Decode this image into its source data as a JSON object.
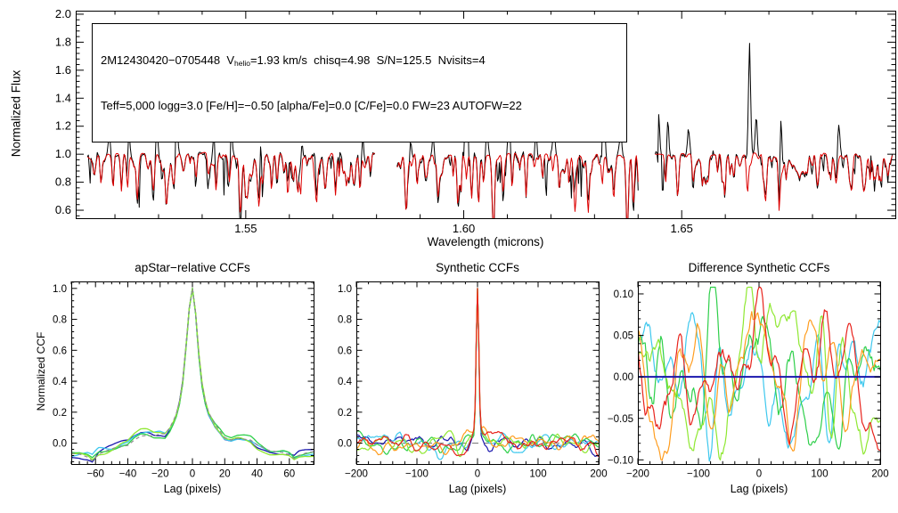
{
  "figure": {
    "annotation": {
      "line1_prefix": "2M12430420−0705448  V",
      "line1_sub": "helio",
      "line1_suffix": "=1.93 km/s  chisq=4.98  S/N=125.5  Nvisits=4",
      "line2": "Teff=5,000 logg=3.0 [Fe/H]=−0.50 [alpha/Fe]=0.0 [C/Fe]=0.0 FW=23 AUTOFW=22"
    },
    "colors": {
      "observed": "#000000",
      "best_fit": "#dd0000",
      "navy": "#1a17ad",
      "cyan": "#3ec8ee",
      "green": "#2ecf4a",
      "chartreuse": "#8fe832",
      "orange": "#ff9d1f",
      "red": "#e8231c",
      "dashed_gray": "#808080"
    }
  },
  "chart_data": [
    {
      "type": "line",
      "title": "",
      "xlabel": "Wavelength (microns)",
      "ylabel": "Normalized Flux",
      "xlim": [
        1.511,
        1.699
      ],
      "ylim": [
        0.543,
        2.025
      ],
      "xticks": {
        "major": [
          1.55,
          1.6,
          1.65
        ],
        "labels": [
          "1.55",
          "1.60",
          "1.65"
        ],
        "minor_step": 0.01
      },
      "yticks": {
        "major": [
          0.6,
          0.8,
          1.0,
          1.2,
          1.4,
          1.6,
          1.8,
          2.0
        ],
        "labels": [
          "0.6",
          "0.8",
          "1.0",
          "1.2",
          "1.4",
          "1.6",
          "1.8",
          "2.0"
        ],
        "minor_step": 0.04
      },
      "series": [
        {
          "name": "observed combined spectrum",
          "color": "#000000"
        },
        {
          "name": "best-fit synthetic spectrum",
          "color": "#dd0000"
        }
      ],
      "continuum": 1.0,
      "segments": [
        [
          1.5137,
          1.5796
        ],
        [
          1.5847,
          1.64
        ],
        [
          1.6439,
          1.6983
        ]
      ],
      "noise": {
        "observed_sigma": 0.017,
        "fit_sigma": 0.006
      },
      "emission_spikes": [
        [
          1.5187,
          1.14
        ],
        [
          1.5231,
          1.27
        ],
        [
          1.5296,
          1.19
        ],
        [
          1.5341,
          1.32
        ],
        [
          1.5427,
          1.23
        ],
        [
          1.5466,
          1.3
        ],
        [
          1.5534,
          1.21
        ],
        [
          1.5597,
          1.18
        ],
        [
          1.5627,
          1.2
        ],
        [
          1.5658,
          1.19
        ],
        [
          1.5717,
          1.13
        ],
        [
          1.5769,
          1.15
        ],
        [
          1.5879,
          1.16
        ],
        [
          1.593,
          1.14
        ],
        [
          1.6006,
          1.66
        ],
        [
          1.6053,
          1.18
        ],
        [
          1.6104,
          1.3
        ],
        [
          1.6165,
          1.21
        ],
        [
          1.6206,
          1.33
        ],
        [
          1.6255,
          1.16
        ],
        [
          1.632,
          1.54
        ],
        [
          1.636,
          1.18
        ],
        [
          1.6447,
          1.3
        ],
        [
          1.6468,
          1.26
        ],
        [
          1.6515,
          1.2
        ],
        [
          1.6655,
          1.92
        ],
        [
          1.6671,
          1.28
        ],
        [
          1.6727,
          1.48
        ],
        [
          1.686,
          1.26
        ],
        [
          1.6935,
          1.14
        ]
      ],
      "absorption_lines": [
        [
          1.5168,
          0.82,
          0.00022
        ],
        [
          1.5196,
          0.86,
          0.0002
        ],
        [
          1.5215,
          0.79,
          0.0002
        ],
        [
          1.5251,
          0.73,
          0.00024
        ],
        [
          1.5288,
          0.71,
          0.00028
        ],
        [
          1.5318,
          0.84,
          0.0002
        ],
        [
          1.5336,
          0.78,
          0.0002
        ],
        [
          1.5386,
          0.82,
          0.0002
        ],
        [
          1.5414,
          0.86,
          0.0002
        ],
        [
          1.5432,
          0.77,
          0.00024
        ],
        [
          1.5462,
          0.84,
          0.0002
        ],
        [
          1.5488,
          0.63,
          0.00028
        ],
        [
          1.5531,
          0.8,
          0.0002
        ],
        [
          1.5559,
          0.85,
          0.0002
        ],
        [
          1.5572,
          0.76,
          0.00022
        ],
        [
          1.5596,
          0.73,
          0.0002
        ],
        [
          1.5626,
          0.8,
          0.0002
        ],
        [
          1.5663,
          0.79,
          0.0002
        ],
        [
          1.5706,
          0.74,
          0.00024
        ],
        [
          1.5731,
          0.82,
          0.0002
        ],
        [
          1.5762,
          0.78,
          0.0002
        ],
        [
          1.5786,
          0.85,
          0.0002
        ],
        [
          1.5868,
          0.64,
          0.00028
        ],
        [
          1.5893,
          0.79,
          0.0002
        ],
        [
          1.5912,
          0.84,
          0.0002
        ],
        [
          1.5941,
          0.72,
          0.00024
        ],
        [
          1.5986,
          0.78,
          0.0002
        ],
        [
          1.6034,
          0.75,
          0.0002
        ],
        [
          1.6068,
          0.7,
          0.00024
        ],
        [
          1.609,
          0.83,
          0.0002
        ],
        [
          1.6111,
          0.77,
          0.0002
        ],
        [
          1.6143,
          0.74,
          0.0002
        ],
        [
          1.6181,
          0.79,
          0.0002
        ],
        [
          1.6219,
          0.77,
          0.0002
        ],
        [
          1.6256,
          0.71,
          0.00024
        ],
        [
          1.6286,
          0.7,
          0.0002
        ],
        [
          1.6318,
          0.77,
          0.0002
        ],
        [
          1.6344,
          0.75,
          0.0002
        ],
        [
          1.6375,
          0.61,
          0.00028
        ],
        [
          1.6389,
          0.66,
          0.00024
        ],
        [
          1.6401,
          0.73,
          0.0002
        ],
        [
          1.6463,
          0.8,
          0.0002
        ],
        [
          1.6491,
          0.76,
          0.00024
        ],
        [
          1.6526,
          0.8,
          0.0002
        ],
        [
          1.6561,
          0.83,
          0.0002
        ],
        [
          1.6599,
          0.78,
          0.0002
        ],
        [
          1.662,
          0.85,
          0.0002
        ],
        [
          1.6651,
          0.77,
          0.00024
        ],
        [
          1.6692,
          0.71,
          0.00028
        ],
        [
          1.6724,
          0.66,
          0.00024
        ],
        [
          1.677,
          0.86,
          0.0008
        ],
        [
          1.681,
          0.87,
          0.0002
        ],
        [
          1.6854,
          0.83,
          0.00028
        ],
        [
          1.6891,
          0.84,
          0.0002
        ],
        [
          1.6932,
          0.81,
          0.0002
        ],
        [
          1.6958,
          0.86,
          0.0002
        ]
      ]
    },
    {
      "type": "line",
      "title": "apStar−relative CCFs",
      "xlabel": "Lag (pixels)",
      "ylabel": "Normalized CCF",
      "xlim": [
        -75,
        75
      ],
      "ylim": [
        -0.135,
        1.045
      ],
      "xticks": {
        "major": [
          -60,
          -40,
          -20,
          0,
          20,
          40,
          60
        ],
        "labels": [
          "−60",
          "−40",
          "−20",
          "0",
          "20",
          "40",
          "60"
        ],
        "minor_step": 5
      },
      "yticks": {
        "major": [
          0,
          0.2,
          0.4,
          0.6,
          0.8,
          1.0
        ],
        "labels": [
          "0.0",
          "0.2",
          "0.4",
          "0.6",
          "0.8",
          "1.0"
        ],
        "minor_step": 0.04
      },
      "series": [
        {
          "name": "visit CCF 1",
          "color": "#1a17ad"
        },
        {
          "name": "visit CCF 2",
          "color": "#3ec8ee"
        },
        {
          "name": "visit CCF 3",
          "color": "#2ecf4a"
        },
        {
          "name": "visit CCF 4",
          "color": "#8fe832"
        },
        {
          "name": "combined CCF (dashed)",
          "color": "#8c8c8c"
        }
      ],
      "peak": {
        "center": 0,
        "height": 1.0,
        "fwhm": 10
      },
      "noise_amp": 0.015,
      "mean_curve": {
        "lag": [
          -75,
          -70,
          -65,
          -62,
          -58,
          -52,
          -48,
          -44,
          -40,
          -36,
          -32,
          -28,
          -24,
          -20,
          -17,
          -14,
          -12,
          -10,
          -8,
          -6,
          -4,
          -2,
          0,
          2,
          4,
          6,
          8,
          10,
          12,
          14,
          17,
          20,
          24,
          28,
          32,
          36,
          40,
          44,
          48,
          52,
          56,
          60,
          63,
          66,
          70,
          75
        ],
        "ccf": [
          -0.065,
          -0.07,
          -0.09,
          -0.115,
          -0.07,
          -0.045,
          -0.03,
          -0.02,
          -0.015,
          0.02,
          0.045,
          0.05,
          0.045,
          0.06,
          0.06,
          0.1,
          0.14,
          0.19,
          0.27,
          0.4,
          0.62,
          0.87,
          1.0,
          0.84,
          0.57,
          0.38,
          0.27,
          0.2,
          0.16,
          0.12,
          0.08,
          0.035,
          0.02,
          0.03,
          0.025,
          0.02,
          -0.01,
          -0.03,
          -0.05,
          -0.055,
          -0.06,
          -0.075,
          -0.1,
          -0.08,
          -0.065,
          -0.055
        ]
      }
    },
    {
      "type": "line",
      "title": "Synthetic CCFs",
      "xlabel": "Lag (pixels)",
      "ylabel": "",
      "xlim": [
        -200,
        200
      ],
      "ylim": [
        -0.135,
        1.045
      ],
      "xticks": {
        "major": [
          -200,
          -100,
          0,
          100,
          200
        ],
        "labels": [
          "−200",
          "−100",
          "0",
          "100",
          "200"
        ],
        "minor_step": 20
      },
      "yticks": {
        "major": [
          0,
          0.2,
          0.4,
          0.6,
          0.8,
          1.0
        ],
        "labels": [
          "0.0",
          "0.2",
          "0.4",
          "0.6",
          "0.8",
          "1.0"
        ],
        "minor_step": 0.04
      },
      "series": [
        {
          "name": "synthetic CCF 1",
          "color": "#1a17ad"
        },
        {
          "name": "synthetic CCF 2",
          "color": "#3ec8ee"
        },
        {
          "name": "synthetic CCF 3",
          "color": "#2ecf4a"
        },
        {
          "name": "synthetic CCF 4",
          "color": "#8fe832"
        },
        {
          "name": "synthetic CCF 5",
          "color": "#ff9d1f"
        },
        {
          "name": "synthetic CCF 6",
          "color": "#e8231c"
        }
      ],
      "peak": {
        "center": 0,
        "height": 1.0,
        "fwhm": 5
      },
      "zero_line": {
        "y": 0.0,
        "style": "dashed",
        "color": "#808080"
      },
      "noise_amp": 0.033
    },
    {
      "type": "line",
      "title": "Difference Synthetic CCFs",
      "xlabel": "Lag (pixels)",
      "ylabel": "",
      "xlim": [
        -200,
        200
      ],
      "ylim": [
        -0.105,
        0.115
      ],
      "xticks": {
        "major": [
          -200,
          -100,
          0,
          100,
          200
        ],
        "labels": [
          "−200",
          "−100",
          "0",
          "100",
          "200"
        ],
        "minor_step": 20
      },
      "yticks": {
        "major": [
          -0.1,
          -0.05,
          0,
          0.05,
          0.1
        ],
        "labels": [
          "−0.10",
          "−0.05",
          "0.00",
          "0.05",
          "0.10"
        ],
        "minor_step": 0.01
      },
      "series": [
        {
          "name": "difference CCF 1",
          "color": "#3ec8ee"
        },
        {
          "name": "difference CCF 2",
          "color": "#2ecf4a"
        },
        {
          "name": "difference CCF 3",
          "color": "#8fe832"
        },
        {
          "name": "difference CCF 4",
          "color": "#ff9d1f"
        },
        {
          "name": "difference CCF 5",
          "color": "#e8231c"
        },
        {
          "name": "reference (flat)",
          "color": "#1a17ad"
        }
      ],
      "reference_value": 0.0,
      "noise_amp": 0.042,
      "value_range": [
        -0.1,
        0.108
      ]
    }
  ]
}
